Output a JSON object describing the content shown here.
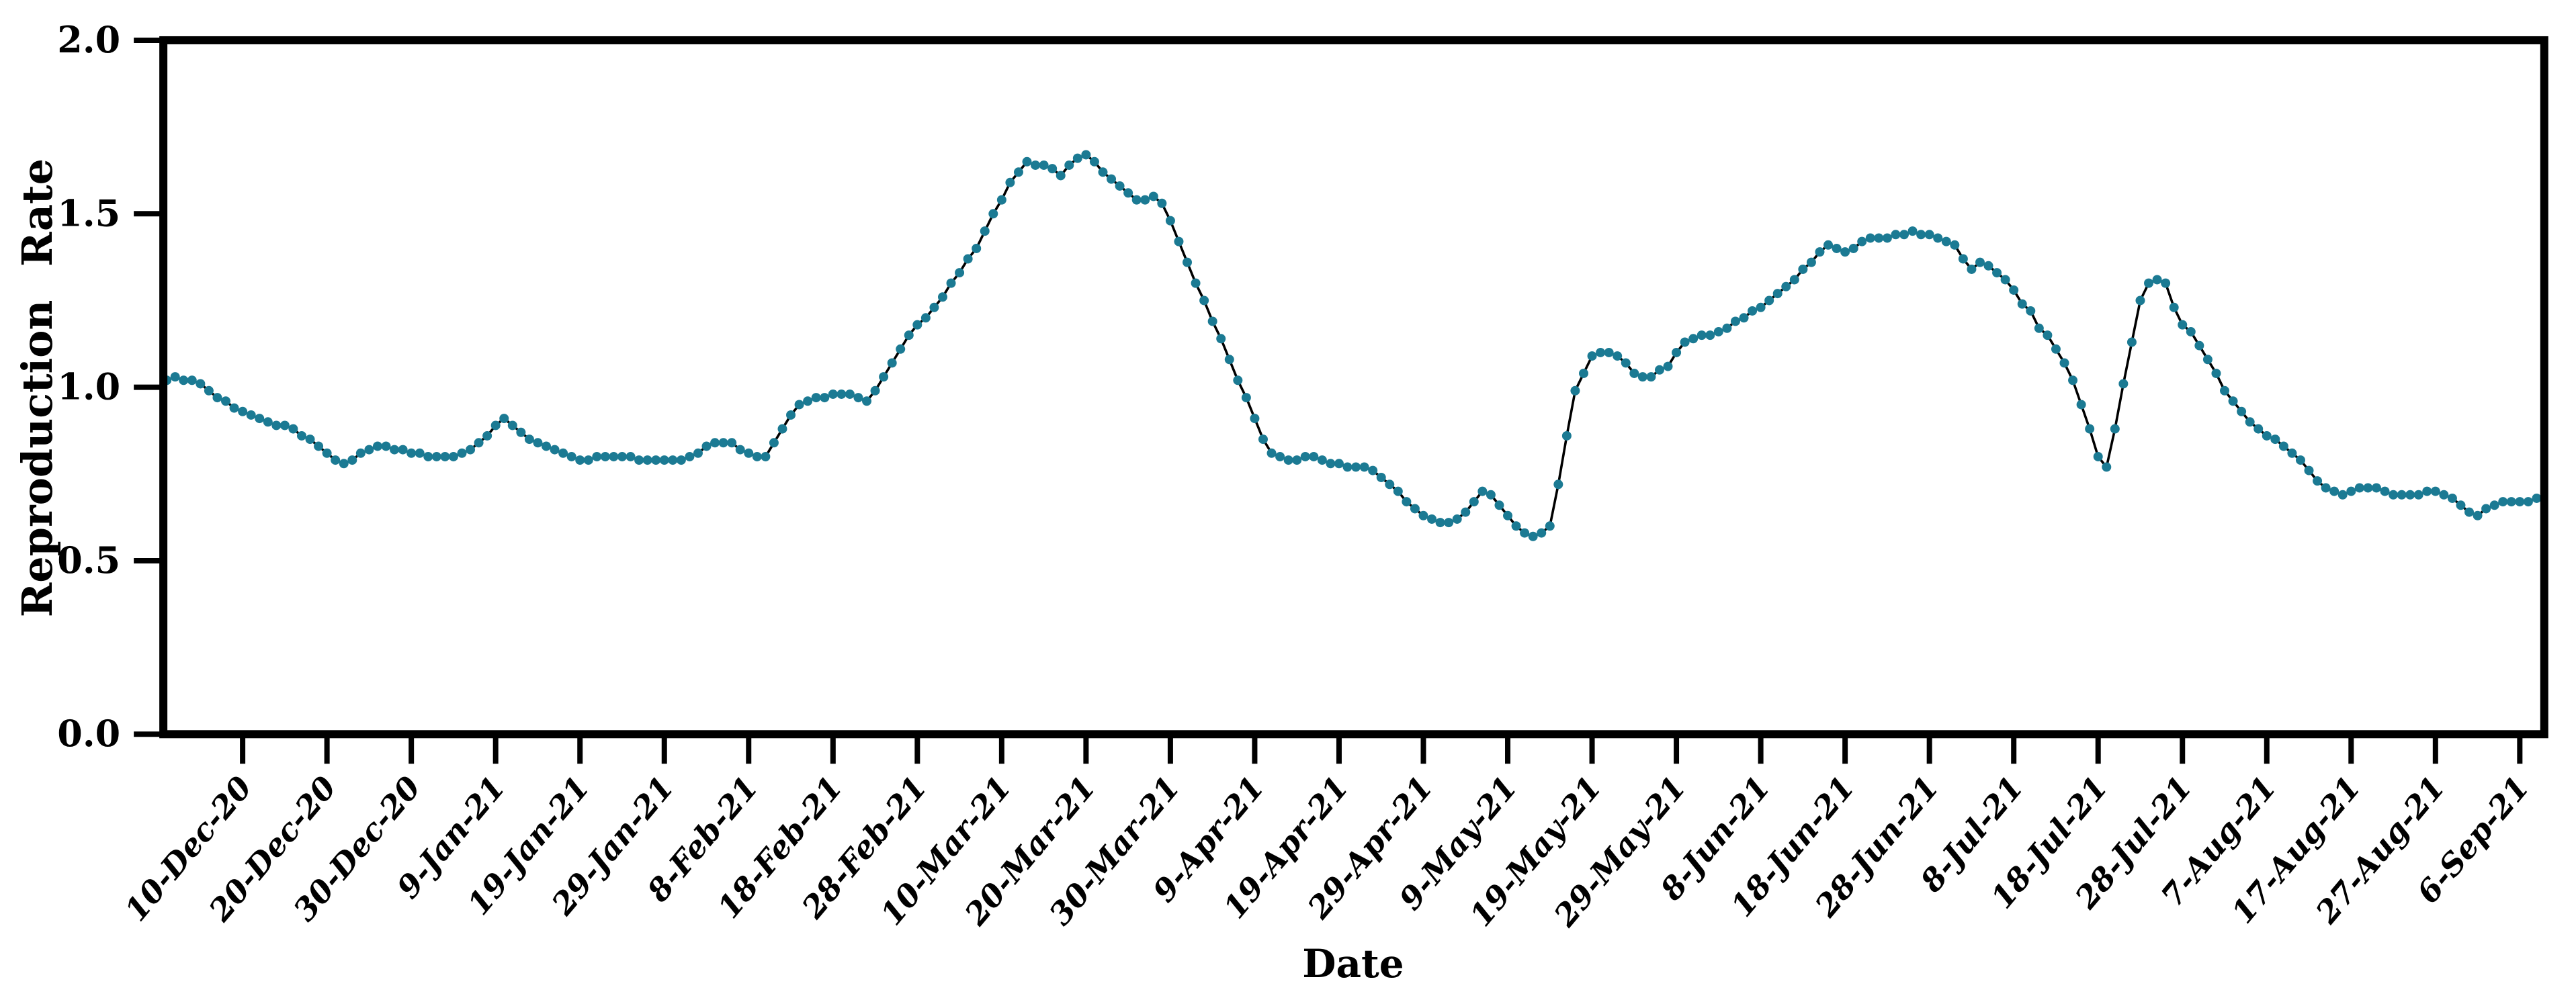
{
  "chart_data": {
    "type": "line",
    "title": "",
    "xlabel": "Date",
    "ylabel": "Reproduction Rate",
    "ylim": [
      0.0,
      2.0
    ],
    "grid": false,
    "legend_position": "none",
    "frame": "full-box",
    "y_tick_labels": [
      "0.0",
      "0.5",
      "1.0",
      "1.5",
      "2.0"
    ],
    "y_tick_values": [
      0.0,
      0.5,
      1.0,
      1.5,
      2.0
    ],
    "x_tick_labels": [
      "10-Dec-20",
      "20-Dec-20",
      "30-Dec-20",
      "9-Jan-21",
      "19-Jan-21",
      "29-Jan-21",
      "8-Feb-21",
      "18-Feb-21",
      "28-Feb-21",
      "10-Mar-21",
      "20-Mar-21",
      "30-Mar-21",
      "9-Apr-21",
      "19-Apr-21",
      "29-Apr-21",
      "9-May-21",
      "19-May-21",
      "29-May-21",
      "8-Jun-21",
      "18-Jun-21",
      "28-Jun-21",
      "8-Jul-21",
      "18-Jul-21",
      "28-Jul-21",
      "7-Aug-21",
      "17-Aug-21",
      "27-Aug-21",
      "6-Sep-21"
    ],
    "x_tick_start_index": 9,
    "x_tick_step": 10,
    "series_start_date": "1-Dec-20",
    "series_end_date": "8-Sep-21",
    "series": [
      {
        "name": "Reproduction Rate",
        "marker_color": "#1b7a93",
        "line_color": "#000000",
        "values": [
          1.02,
          1.03,
          1.02,
          1.02,
          1.01,
          0.99,
          0.97,
          0.96,
          0.94,
          0.93,
          0.92,
          0.91,
          0.9,
          0.89,
          0.89,
          0.88,
          0.86,
          0.85,
          0.83,
          0.81,
          0.79,
          0.78,
          0.79,
          0.81,
          0.82,
          0.83,
          0.83,
          0.82,
          0.82,
          0.81,
          0.81,
          0.8,
          0.8,
          0.8,
          0.8,
          0.81,
          0.82,
          0.84,
          0.86,
          0.89,
          0.91,
          0.89,
          0.87,
          0.85,
          0.84,
          0.83,
          0.82,
          0.81,
          0.8,
          0.79,
          0.79,
          0.8,
          0.8,
          0.8,
          0.8,
          0.8,
          0.79,
          0.79,
          0.79,
          0.79,
          0.79,
          0.79,
          0.8,
          0.81,
          0.83,
          0.84,
          0.84,
          0.84,
          0.82,
          0.81,
          0.8,
          0.8,
          0.84,
          0.88,
          0.92,
          0.95,
          0.96,
          0.97,
          0.97,
          0.98,
          0.98,
          0.98,
          0.97,
          0.96,
          0.99,
          1.03,
          1.07,
          1.11,
          1.15,
          1.18,
          1.2,
          1.23,
          1.26,
          1.3,
          1.33,
          1.37,
          1.4,
          1.45,
          1.5,
          1.54,
          1.59,
          1.62,
          1.65,
          1.64,
          1.64,
          1.63,
          1.61,
          1.64,
          1.66,
          1.67,
          1.65,
          1.62,
          1.6,
          1.58,
          1.56,
          1.54,
          1.54,
          1.55,
          1.53,
          1.48,
          1.42,
          1.36,
          1.3,
          1.25,
          1.19,
          1.14,
          1.08,
          1.02,
          0.97,
          0.91,
          0.85,
          0.81,
          0.8,
          0.79,
          0.79,
          0.8,
          0.8,
          0.79,
          0.78,
          0.78,
          0.77,
          0.77,
          0.77,
          0.76,
          0.74,
          0.72,
          0.7,
          0.67,
          0.65,
          0.63,
          0.62,
          0.61,
          0.61,
          0.62,
          0.64,
          0.67,
          0.7,
          0.69,
          0.66,
          0.63,
          0.6,
          0.58,
          0.57,
          0.58,
          0.6,
          0.72,
          0.86,
          0.99,
          1.04,
          1.09,
          1.1,
          1.1,
          1.09,
          1.07,
          1.04,
          1.03,
          1.03,
          1.05,
          1.06,
          1.1,
          1.13,
          1.14,
          1.15,
          1.15,
          1.16,
          1.17,
          1.19,
          1.2,
          1.22,
          1.23,
          1.25,
          1.27,
          1.29,
          1.31,
          1.34,
          1.36,
          1.39,
          1.41,
          1.4,
          1.39,
          1.4,
          1.42,
          1.43,
          1.43,
          1.43,
          1.44,
          1.44,
          1.45,
          1.44,
          1.44,
          1.43,
          1.42,
          1.41,
          1.37,
          1.34,
          1.36,
          1.35,
          1.33,
          1.31,
          1.28,
          1.24,
          1.22,
          1.17,
          1.15,
          1.11,
          1.07,
          1.02,
          0.95,
          0.88,
          0.8,
          0.77,
          0.88,
          1.01,
          1.13,
          1.25,
          1.3,
          1.31,
          1.3,
          1.23,
          1.18,
          1.16,
          1.12,
          1.08,
          1.04,
          0.99,
          0.96,
          0.93,
          0.9,
          0.88,
          0.86,
          0.85,
          0.83,
          0.81,
          0.79,
          0.76,
          0.73,
          0.71,
          0.7,
          0.69,
          0.7,
          0.71,
          0.71,
          0.71,
          0.7,
          0.69,
          0.69,
          0.69,
          0.69,
          0.7,
          0.7,
          0.69,
          0.68,
          0.66,
          0.64,
          0.63,
          0.65,
          0.66,
          0.67,
          0.67,
          0.67,
          0.67,
          0.68
        ]
      }
    ],
    "style": {
      "frame_color": "#000000",
      "background_color": "#ffffff",
      "tick_color": "#000000"
    }
  }
}
